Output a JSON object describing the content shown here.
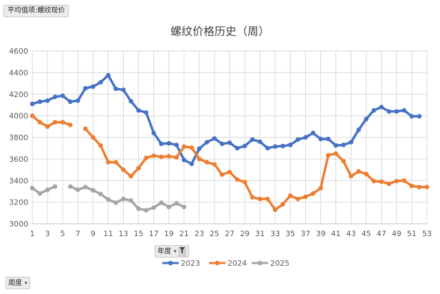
{
  "field_button_label": "平均值项:螺纹现价",
  "year_filter_label": "年度",
  "week_filter_label": "周度",
  "filter_arrow": "▾",
  "chart_data": {
    "type": "line",
    "title": "螺纹价格历史（周）",
    "xlabel": "",
    "ylabel": "",
    "ylim": [
      3000,
      4600
    ],
    "yticks": [
      3000,
      3200,
      3400,
      3600,
      3800,
      4000,
      4200,
      4400,
      4600
    ],
    "xlim": [
      1,
      53
    ],
    "xticks": [
      1,
      3,
      5,
      7,
      9,
      11,
      13,
      15,
      17,
      19,
      21,
      23,
      25,
      27,
      29,
      31,
      33,
      35,
      37,
      39,
      41,
      43,
      45,
      47,
      49,
      51,
      53
    ],
    "grid": true,
    "legend_position": "bottom",
    "series": [
      {
        "name": "2023",
        "color": "#4472C4",
        "x": [
          1,
          2,
          3,
          4,
          5,
          6,
          7,
          8,
          9,
          10,
          11,
          12,
          13,
          14,
          15,
          16,
          17,
          18,
          19,
          20,
          21,
          22,
          23,
          24,
          25,
          26,
          27,
          28,
          29,
          30,
          31,
          32,
          33,
          34,
          35,
          36,
          37,
          38,
          39,
          40,
          41,
          42,
          43,
          44,
          45,
          46,
          47,
          48,
          49,
          50,
          51,
          52
        ],
        "values": [
          4110,
          4130,
          4140,
          4175,
          4185,
          4130,
          4140,
          4255,
          4270,
          4310,
          4375,
          4250,
          4240,
          4135,
          4050,
          4030,
          3840,
          3740,
          3745,
          3730,
          3590,
          3555,
          3695,
          3755,
          3790,
          3740,
          3750,
          3700,
          3720,
          3780,
          3760,
          3700,
          3715,
          3720,
          3730,
          3780,
          3800,
          3840,
          3785,
          3785,
          3725,
          3730,
          3755,
          3870,
          3970,
          4050,
          4080,
          4040,
          4040,
          4050,
          3995,
          3995
        ]
      },
      {
        "name": "2024",
        "color": "#ED7D31",
        "x": [
          1,
          2,
          3,
          4,
          5,
          6,
          null,
          8,
          9,
          10,
          11,
          12,
          13,
          14,
          15,
          16,
          17,
          18,
          19,
          20,
          21,
          22,
          23,
          24,
          25,
          26,
          27,
          28,
          29,
          30,
          31,
          32,
          33,
          34,
          35,
          36,
          37,
          38,
          39,
          40,
          41,
          42,
          43,
          44,
          45,
          46,
          47,
          48,
          49,
          50,
          51,
          52,
          53
        ],
        "values": [
          4000,
          3940,
          3900,
          3940,
          3940,
          3915,
          null,
          3880,
          3800,
          3725,
          3570,
          3570,
          3500,
          3440,
          3515,
          3610,
          3630,
          3620,
          3625,
          3615,
          3715,
          3705,
          3600,
          3570,
          3550,
          3455,
          3480,
          3410,
          3385,
          3245,
          3230,
          3230,
          3130,
          3180,
          3260,
          3230,
          3250,
          3280,
          3330,
          3635,
          3650,
          3580,
          3440,
          3485,
          3460,
          3395,
          3390,
          3370,
          3395,
          3400,
          3350,
          3340,
          3340
        ]
      },
      {
        "name": "2025",
        "color": "#A5A5A5",
        "x": [
          1,
          2,
          3,
          4,
          null,
          6,
          7,
          8,
          9,
          10,
          11,
          12,
          13,
          14,
          15,
          16,
          17,
          18,
          19,
          20,
          21
        ],
        "values": [
          3330,
          3280,
          3315,
          3345,
          null,
          3345,
          3315,
          3340,
          3310,
          3275,
          3225,
          3195,
          3230,
          3215,
          3140,
          3125,
          3150,
          3195,
          3155,
          3190,
          3155
        ]
      }
    ]
  }
}
